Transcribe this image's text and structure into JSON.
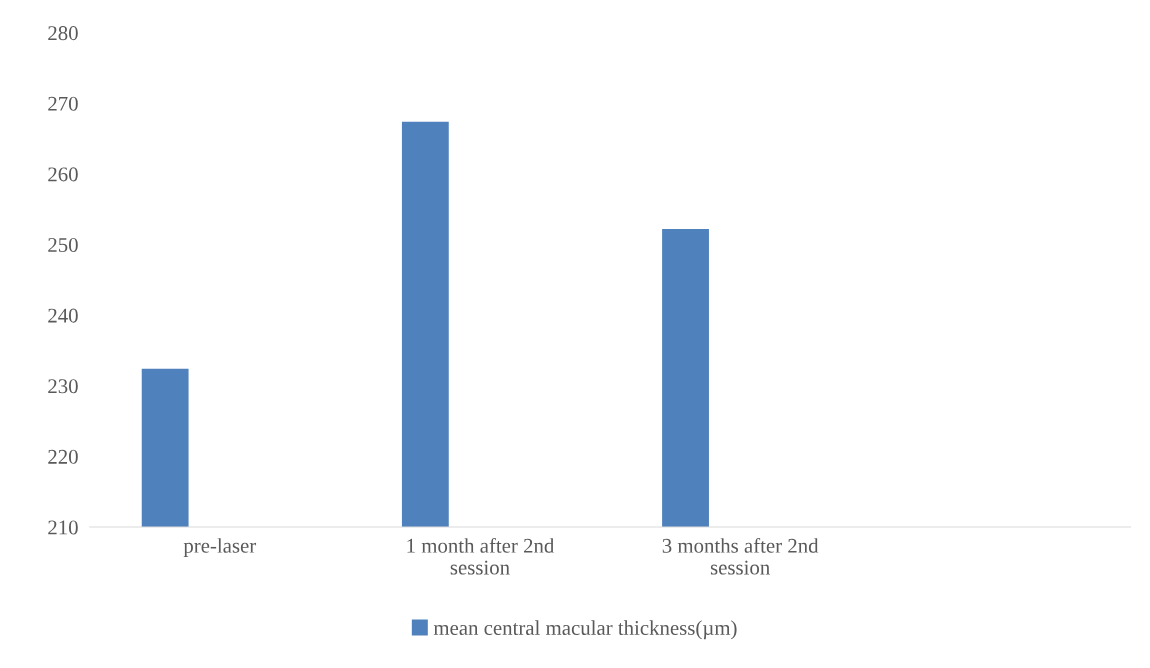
{
  "chart_data": {
    "type": "bar",
    "categories": [
      "pre-laser",
      "1 month after 2nd session",
      "3 months after 2nd session",
      null
    ],
    "series": [
      {
        "name": "mean central macular thickness(µm)",
        "color": "#4f81bd",
        "values": [
          232.4,
          267.4,
          252.2,
          null
        ]
      }
    ],
    "ylim": [
      210,
      280
    ],
    "yticks": [
      210,
      220,
      230,
      240,
      250,
      260,
      270,
      280
    ],
    "grid": false,
    "legend": "bottom"
  }
}
